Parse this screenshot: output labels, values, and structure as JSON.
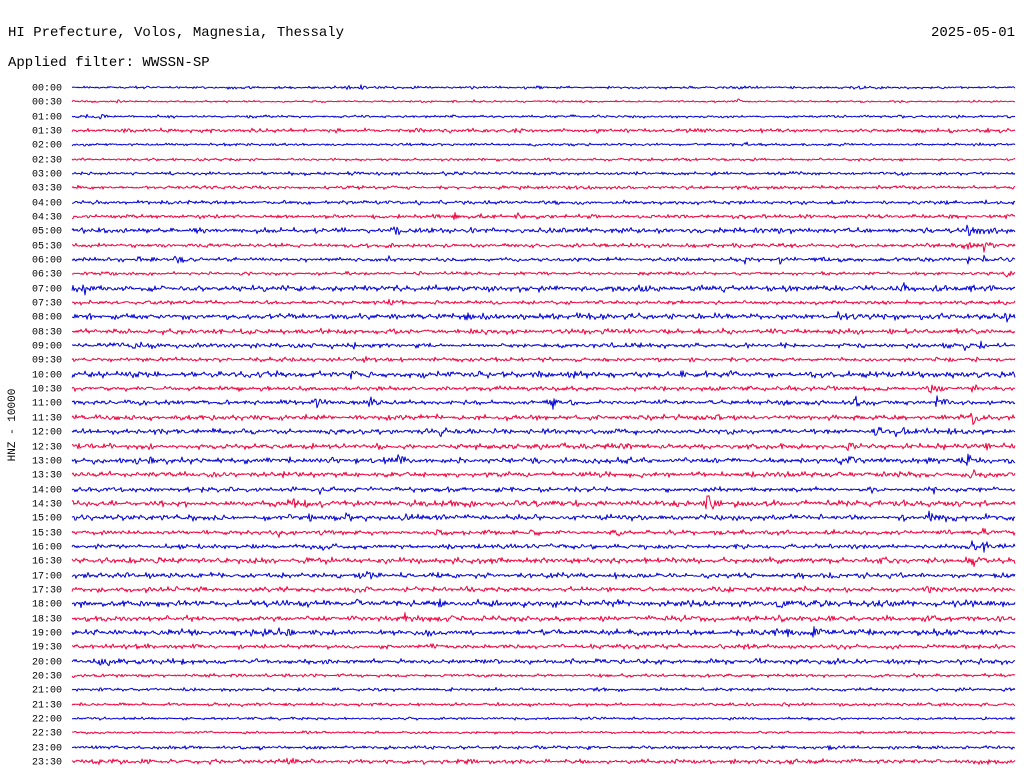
{
  "chart_data": {
    "type": "line",
    "title": "HI Prefecture, Volos, Magnesia, Thessaly",
    "date": "2025-05-01",
    "filter": "Applied filter: WWSSN-SP",
    "ylabel": "HNZ - 10000",
    "xlim": [
      0,
      30
    ],
    "trace_colors": [
      "#0000d4",
      "#f0003c"
    ],
    "rows": [
      {
        "label": "00:00",
        "noise": 0.4,
        "events": [
          [
            8.8,
            0.6
          ],
          [
            9.2,
            0.5
          ],
          [
            14.9,
            0.5
          ],
          [
            21.2,
            0.5
          ],
          [
            25.1,
            0.5
          ]
        ]
      },
      {
        "label": "00:30",
        "noise": 0.3,
        "events": [
          [
            1.5,
            0.5
          ],
          [
            12.8,
            0.5
          ],
          [
            21.2,
            0.7
          ]
        ]
      },
      {
        "label": "01:00",
        "noise": 0.4,
        "events": [
          [
            0.5,
            0.7
          ],
          [
            1.0,
            0.6
          ]
        ]
      },
      {
        "label": "01:30",
        "noise": 0.6,
        "events": [
          [
            14.1,
            0.8
          ]
        ]
      },
      {
        "label": "02:00",
        "noise": 0.4,
        "events": [
          [
            6.4,
            0.4
          ],
          [
            21.4,
            0.8
          ]
        ]
      },
      {
        "label": "02:30",
        "noise": 0.4,
        "events": []
      },
      {
        "label": "03:00",
        "noise": 0.5,
        "events": []
      },
      {
        "label": "03:30",
        "noise": 0.5,
        "events": [
          [
            3.4,
            0.5
          ],
          [
            6.6,
            0.7
          ],
          [
            14.3,
            0.6
          ],
          [
            21.2,
            0.7
          ]
        ]
      },
      {
        "label": "04:00",
        "noise": 0.6,
        "events": [
          [
            9.2,
            0.6
          ],
          [
            27.8,
            0.8
          ]
        ]
      },
      {
        "label": "04:30",
        "noise": 0.6,
        "events": [
          [
            11.5,
            1.0
          ],
          [
            12.2,
            0.9
          ],
          [
            13.0,
            0.8
          ],
          [
            14.2,
            0.8
          ],
          [
            29.8,
            0.8
          ]
        ]
      },
      {
        "label": "05:00",
        "noise": 0.8,
        "events": [
          [
            10.2,
            1.6
          ],
          [
            20.6,
            0.7
          ],
          [
            27.0,
            0.8
          ],
          [
            28.5,
            1.8
          ],
          [
            29.3,
            0.8
          ]
        ]
      },
      {
        "label": "05:30",
        "noise": 0.6,
        "events": [
          [
            22.2,
            0.7
          ],
          [
            28.4,
            1.2
          ],
          [
            29.0,
            1.4
          ]
        ]
      },
      {
        "label": "06:00",
        "noise": 0.6,
        "events": [
          [
            2.1,
            1.0
          ],
          [
            3.3,
            1.4
          ],
          [
            10.1,
            0.8
          ],
          [
            21.4,
            0.7
          ],
          [
            22.5,
            1.0
          ],
          [
            28.5,
            1.2
          ],
          [
            29.0,
            0.9
          ],
          [
            29.8,
            0.7
          ]
        ]
      },
      {
        "label": "06:30",
        "noise": 0.5,
        "events": [
          [
            8.8,
            0.6
          ],
          [
            29.7,
            1.2
          ]
        ]
      },
      {
        "label": "07:00",
        "noise": 0.9,
        "events": [
          [
            0.4,
            1.4
          ],
          [
            9.3,
            1.2
          ],
          [
            26.5,
            1.3
          ],
          [
            28.6,
            0.8
          ]
        ]
      },
      {
        "label": "07:30",
        "noise": 0.6,
        "events": [
          [
            10.1,
            0.9
          ],
          [
            28.4,
            0.8
          ]
        ]
      },
      {
        "label": "08:00",
        "noise": 0.9,
        "events": [
          [
            10.8,
            0.8
          ],
          [
            15.2,
            1.0
          ],
          [
            16.5,
            1.1
          ],
          [
            24.4,
            1.2
          ],
          [
            29.7,
            1.9
          ]
        ]
      },
      {
        "label": "08:30",
        "noise": 0.8,
        "events": [
          [
            10.3,
            1.1
          ],
          [
            12.7,
            0.6
          ]
        ]
      },
      {
        "label": "09:00",
        "noise": 0.7,
        "events": [
          [
            2.0,
            1.2
          ],
          [
            2.5,
            1.0
          ],
          [
            8.3,
            1.3
          ],
          [
            9.0,
            1.0
          ],
          [
            28.4,
            1.1
          ],
          [
            28.9,
            1.0
          ]
        ]
      },
      {
        "label": "09:30",
        "noise": 0.6,
        "events": [
          [
            9.3,
            0.7
          ],
          [
            19.8,
            0.7
          ],
          [
            27.5,
            0.7
          ],
          [
            27.9,
            0.7
          ]
        ]
      },
      {
        "label": "10:00",
        "noise": 0.9,
        "events": [
          [
            8.9,
            1.4
          ],
          [
            10.6,
            0.8
          ],
          [
            24.7,
            0.6
          ],
          [
            26.8,
            0.8
          ]
        ]
      },
      {
        "label": "10:30",
        "noise": 0.7,
        "events": [
          [
            7.9,
            0.8
          ],
          [
            25.9,
            0.8
          ],
          [
            27.3,
            1.1
          ],
          [
            28.6,
            1.0
          ]
        ]
      },
      {
        "label": "11:00",
        "noise": 0.7,
        "events": [
          [
            7.8,
            1.4
          ],
          [
            9.5,
            1.5
          ],
          [
            15.3,
            1.3
          ],
          [
            22.5,
            0.8
          ],
          [
            24.9,
            1.5
          ],
          [
            27.5,
            1.4
          ],
          [
            27.8,
            0.9
          ]
        ]
      },
      {
        "label": "11:30",
        "noise": 0.8,
        "events": [
          [
            7.9,
            0.8
          ],
          [
            10.3,
            1.0
          ],
          [
            16.8,
            0.8
          ],
          [
            28.7,
            1.8
          ]
        ]
      },
      {
        "label": "12:00",
        "noise": 0.8,
        "events": [
          [
            11.7,
            1.1
          ],
          [
            25.5,
            1.3
          ],
          [
            26.2,
            1.2
          ],
          [
            26.5,
            1.0
          ],
          [
            28.4,
            0.7
          ]
        ]
      },
      {
        "label": "12:30",
        "noise": 0.8,
        "events": [
          [
            7.7,
            1.0
          ],
          [
            15.6,
            0.8
          ],
          [
            24.7,
            1.5
          ],
          [
            27.5,
            0.8
          ],
          [
            28.4,
            1.0
          ],
          [
            29.0,
            0.8
          ]
        ]
      },
      {
        "label": "13:00",
        "noise": 0.9,
        "events": [
          [
            1.0,
            0.8
          ],
          [
            2.5,
            0.7
          ],
          [
            10.4,
            1.1
          ],
          [
            17.4,
            1.0
          ],
          [
            24.3,
            1.2
          ],
          [
            28.5,
            1.6
          ],
          [
            29.0,
            0.7
          ]
        ]
      },
      {
        "label": "13:30",
        "noise": 0.8,
        "events": [
          [
            7.7,
            0.7
          ],
          [
            28.6,
            1.5
          ]
        ]
      },
      {
        "label": "14:00",
        "noise": 0.7,
        "events": [
          [
            7.9,
            0.9
          ],
          [
            8.2,
            1.0
          ],
          [
            25.4,
            1.2
          ],
          [
            27.3,
            1.5
          ]
        ]
      },
      {
        "label": "14:30",
        "noise": 0.9,
        "events": [
          [
            6.4,
            0.8
          ],
          [
            6.9,
            1.4
          ],
          [
            7.4,
            0.9
          ],
          [
            7.9,
            0.8
          ],
          [
            20.2,
            2.2
          ],
          [
            25.7,
            0.7
          ],
          [
            27.3,
            0.9
          ],
          [
            27.8,
            0.8
          ]
        ]
      },
      {
        "label": "15:00",
        "noise": 0.9,
        "events": [
          [
            0.4,
            0.8
          ],
          [
            6.9,
            1.2
          ],
          [
            8.8,
            1.1
          ],
          [
            27.3,
            1.4
          ],
          [
            27.8,
            1.3
          ]
        ]
      },
      {
        "label": "15:30",
        "noise": 0.7,
        "events": [
          [
            6.6,
            0.6
          ],
          [
            17.4,
            0.7
          ],
          [
            29.0,
            1.1
          ]
        ]
      },
      {
        "label": "16:00",
        "noise": 0.7,
        "events": [
          [
            3.4,
            0.6
          ],
          [
            8.0,
            1.2
          ],
          [
            28.6,
            1.5
          ],
          [
            29.0,
            1.6
          ]
        ]
      },
      {
        "label": "16:30",
        "noise": 0.9,
        "events": [
          [
            28.6,
            1.7
          ]
        ]
      },
      {
        "label": "17:00",
        "noise": 0.8,
        "events": [
          [
            9.0,
            0.8
          ],
          [
            9.4,
            1.2
          ],
          [
            24.3,
            0.8
          ],
          [
            28.6,
            1.1
          ]
        ]
      },
      {
        "label": "17:30",
        "noise": 0.8,
        "events": [
          [
            6.5,
            0.8
          ],
          [
            9.4,
            0.9
          ],
          [
            27.3,
            1.1
          ]
        ]
      },
      {
        "label": "18:00",
        "noise": 1.0,
        "events": [
          [
            6.9,
            0.8
          ],
          [
            9.1,
            1.4
          ],
          [
            11.7,
            0.8
          ],
          [
            22.5,
            1.4
          ],
          [
            25.4,
            1.1
          ]
        ]
      },
      {
        "label": "18:30",
        "noise": 0.8,
        "events": [
          [
            10.6,
            0.8
          ],
          [
            19.8,
            0.6
          ],
          [
            22.5,
            1.2
          ]
        ]
      },
      {
        "label": "19:00",
        "noise": 0.9,
        "events": [
          [
            6.6,
            1.0
          ],
          [
            6.9,
            1.1
          ],
          [
            22.7,
            1.0
          ],
          [
            23.6,
            1.5
          ],
          [
            25.4,
            1.0
          ],
          [
            27.5,
            1.0
          ]
        ]
      },
      {
        "label": "19:30",
        "noise": 0.7,
        "events": [
          [
            5.3,
            0.7
          ],
          [
            7.6,
            0.6
          ]
        ]
      },
      {
        "label": "20:00",
        "noise": 0.8,
        "events": [
          [
            0.9,
            1.5
          ]
        ]
      },
      {
        "label": "20:30",
        "noise": 0.5,
        "events": [
          [
            1.7,
            0.6
          ]
        ]
      },
      {
        "label": "21:00",
        "noise": 0.5,
        "events": []
      },
      {
        "label": "21:30",
        "noise": 0.5,
        "events": []
      },
      {
        "label": "22:00",
        "noise": 0.4,
        "events": []
      },
      {
        "label": "22:30",
        "noise": 0.4,
        "events": []
      },
      {
        "label": "23:00",
        "noise": 0.5,
        "events": [
          [
            6.0,
            0.6
          ],
          [
            24.1,
            0.6
          ]
        ]
      },
      {
        "label": "23:30",
        "noise": 0.7,
        "events": [
          [
            6.5,
            0.8
          ],
          [
            6.9,
            1.3
          ]
        ]
      }
    ]
  }
}
